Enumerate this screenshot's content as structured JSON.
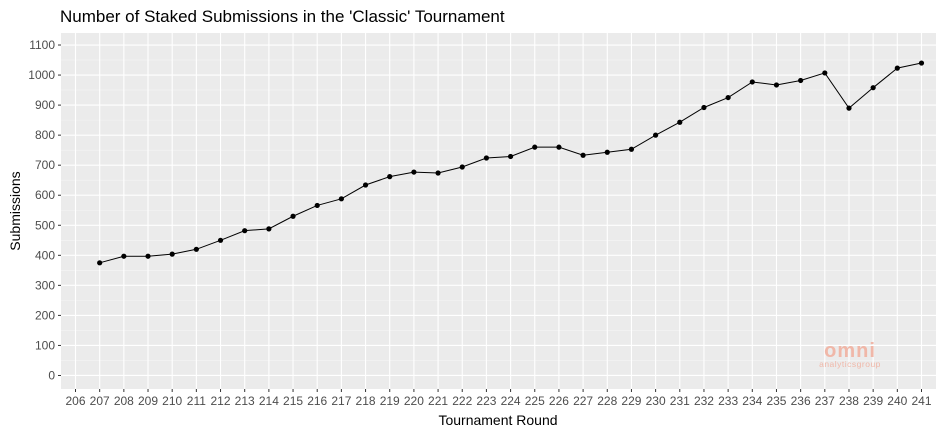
{
  "chart_data": {
    "type": "line",
    "title": "Number of Staked Submissions in the 'Classic' Tournament",
    "xlabel": "Tournament Round",
    "ylabel": "Submissions",
    "xlim": [
      206,
      241
    ],
    "ylim": [
      0,
      1100
    ],
    "x_ticks": [
      206,
      207,
      208,
      209,
      210,
      211,
      212,
      213,
      214,
      215,
      216,
      217,
      218,
      219,
      220,
      221,
      222,
      223,
      224,
      225,
      226,
      227,
      228,
      229,
      230,
      231,
      232,
      233,
      234,
      235,
      236,
      237,
      238,
      239,
      240,
      241
    ],
    "y_ticks": [
      0,
      100,
      200,
      300,
      400,
      500,
      600,
      700,
      800,
      900,
      1000,
      1100
    ],
    "grid": true,
    "legend": "none",
    "series": [
      {
        "color": "#000000",
        "x": [
          207,
          208,
          209,
          210,
          211,
          212,
          213,
          214,
          215,
          216,
          217,
          218,
          219,
          220,
          221,
          222,
          223,
          224,
          225,
          226,
          227,
          228,
          229,
          230,
          231,
          232,
          233,
          234,
          235,
          236,
          237,
          238,
          239,
          240,
          241
        ],
        "values": [
          375,
          397,
          397,
          404,
          420,
          450,
          482,
          488,
          530,
          566,
          588,
          634,
          662,
          677,
          674,
          694,
          724,
          729,
          760,
          760,
          733,
          743,
          753,
          800,
          843,
          892,
          925,
          977,
          967,
          982,
          1007,
          890,
          958,
          1023,
          1040
        ]
      }
    ]
  },
  "watermark": {
    "main": "omni",
    "sub": "analyticsgroup"
  }
}
